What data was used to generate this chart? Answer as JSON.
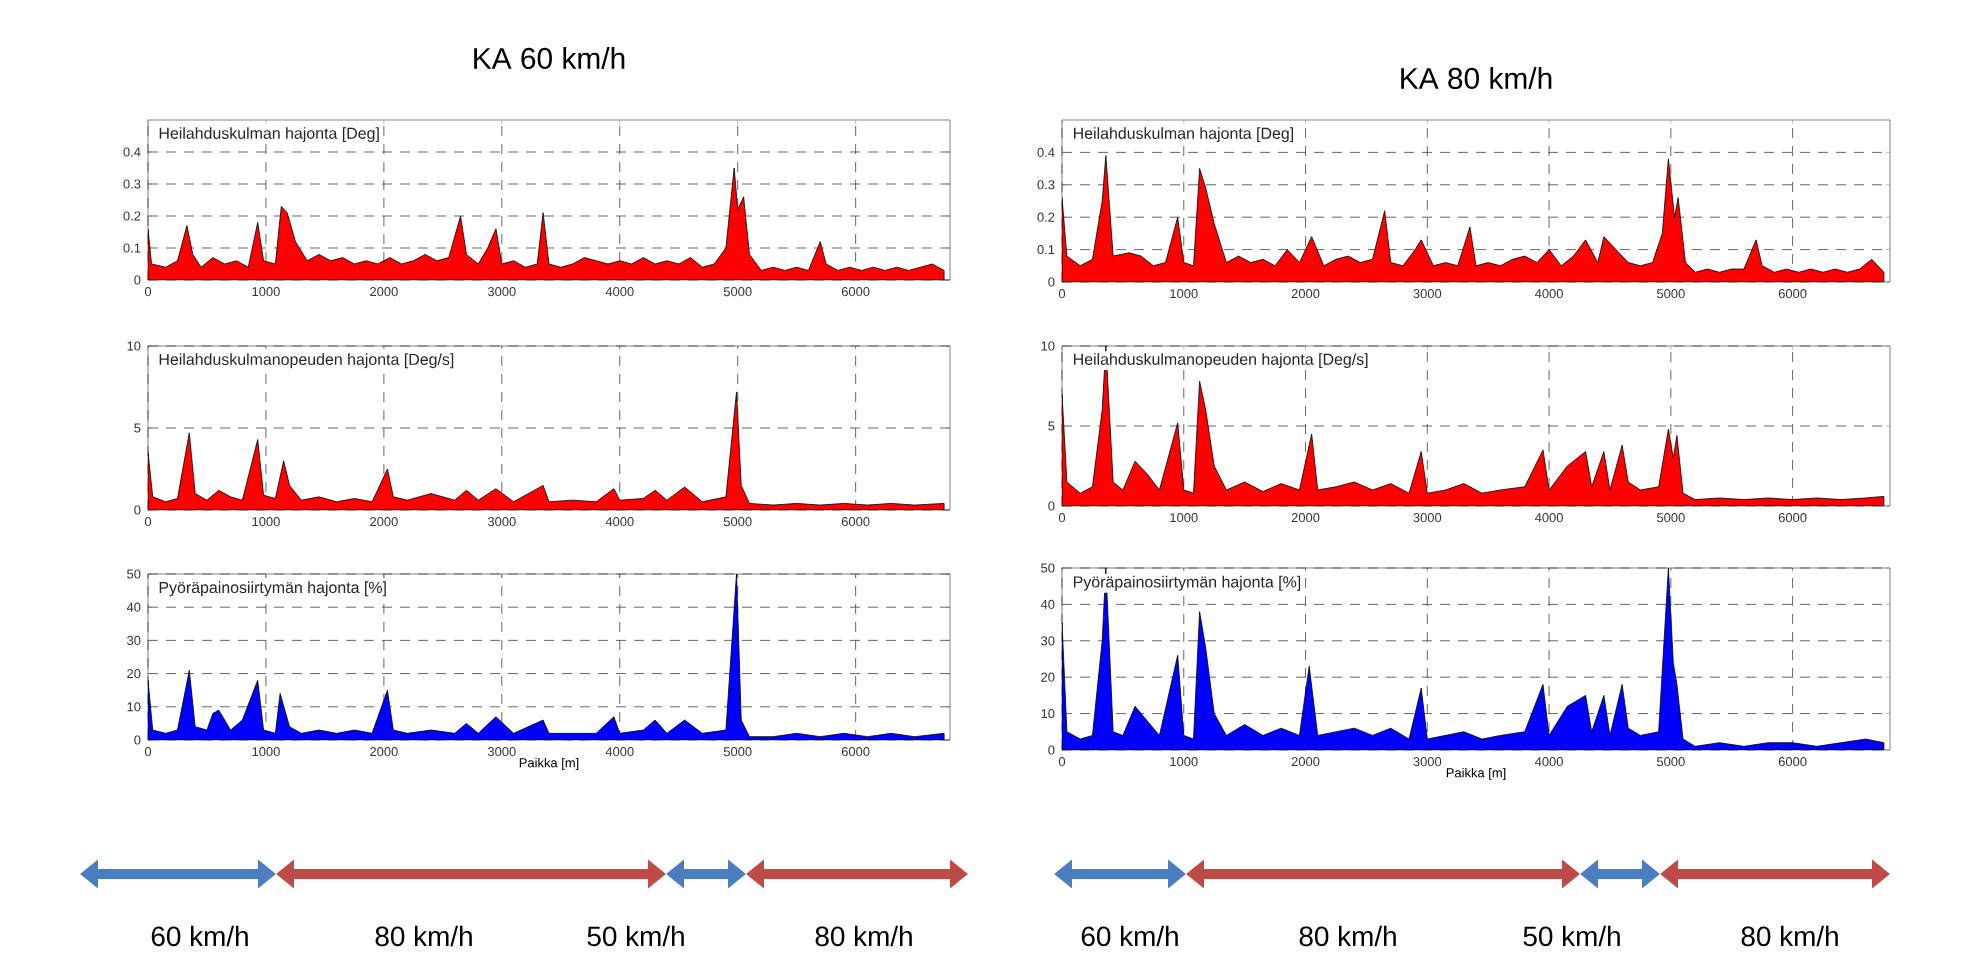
{
  "chart_data": [
    {
      "type": "area",
      "title": "KA 60 km/h",
      "subtitle": "Heilahduskulman hajonta [Deg]",
      "xlim": [
        0,
        6800
      ],
      "xticks": [
        0,
        1000,
        2000,
        3000,
        4000,
        5000,
        6000
      ],
      "ylim": [
        0,
        0.5
      ],
      "yticks": [
        0,
        0.1,
        0.2,
        0.3,
        0.4
      ],
      "grid": true,
      "series": [
        {
          "color": "#ff0000",
          "x": [
            0,
            30,
            150,
            250,
            330,
            380,
            450,
            550,
            650,
            750,
            850,
            930,
            980,
            1080,
            1130,
            1180,
            1250,
            1350,
            1450,
            1550,
            1650,
            1750,
            1850,
            1950,
            2050,
            2150,
            2250,
            2350,
            2450,
            2550,
            2650,
            2700,
            2800,
            2880,
            2950,
            3000,
            3100,
            3200,
            3300,
            3350,
            3400,
            3500,
            3600,
            3700,
            3800,
            3900,
            4000,
            4100,
            4200,
            4300,
            4400,
            4500,
            4600,
            4700,
            4800,
            4900,
            4970,
            5000,
            5050,
            5100,
            5200,
            5300,
            5400,
            5500,
            5600,
            5700,
            5750,
            5850,
            5950,
            6050,
            6150,
            6250,
            6350,
            6450,
            6550,
            6650,
            6750
          ],
          "values": [
            0.16,
            0.05,
            0.04,
            0.06,
            0.17,
            0.08,
            0.04,
            0.07,
            0.05,
            0.06,
            0.04,
            0.18,
            0.06,
            0.05,
            0.23,
            0.21,
            0.12,
            0.06,
            0.08,
            0.06,
            0.07,
            0.05,
            0.06,
            0.05,
            0.07,
            0.05,
            0.06,
            0.08,
            0.06,
            0.07,
            0.2,
            0.08,
            0.05,
            0.1,
            0.16,
            0.05,
            0.06,
            0.04,
            0.05,
            0.21,
            0.05,
            0.04,
            0.05,
            0.07,
            0.06,
            0.05,
            0.06,
            0.05,
            0.07,
            0.05,
            0.06,
            0.05,
            0.07,
            0.04,
            0.05,
            0.1,
            0.35,
            0.22,
            0.26,
            0.08,
            0.03,
            0.04,
            0.03,
            0.04,
            0.03,
            0.12,
            0.05,
            0.03,
            0.04,
            0.03,
            0.04,
            0.03,
            0.04,
            0.03,
            0.04,
            0.05,
            0.03
          ]
        }
      ]
    },
    {
      "type": "area",
      "subtitle": "Heilahduskulmanopeuden hajonta [Deg/s]",
      "xlim": [
        0,
        6800
      ],
      "xticks": [
        0,
        1000,
        2000,
        3000,
        4000,
        5000,
        6000
      ],
      "ylim": [
        0,
        10
      ],
      "yticks": [
        0,
        5,
        10
      ],
      "grid": true,
      "series": [
        {
          "color": "#ff0000",
          "x": [
            0,
            40,
            150,
            250,
            350,
            400,
            500,
            600,
            700,
            800,
            930,
            980,
            1080,
            1150,
            1200,
            1300,
            1450,
            1600,
            1750,
            1900,
            2030,
            2080,
            2200,
            2400,
            2600,
            2700,
            2800,
            2950,
            3100,
            3350,
            3400,
            3600,
            3800,
            3950,
            4000,
            4200,
            4300,
            4400,
            4550,
            4700,
            4900,
            4990,
            5030,
            5100,
            5300,
            5500,
            5700,
            5900,
            6100,
            6300,
            6500,
            6750
          ],
          "values": [
            3.5,
            0.8,
            0.5,
            0.7,
            4.7,
            1.0,
            0.6,
            1.2,
            0.8,
            0.6,
            4.3,
            0.9,
            0.7,
            3.0,
            1.5,
            0.6,
            0.8,
            0.5,
            0.7,
            0.5,
            2.5,
            0.8,
            0.6,
            1.0,
            0.6,
            1.2,
            0.6,
            1.3,
            0.5,
            1.5,
            0.5,
            0.6,
            0.5,
            1.3,
            0.6,
            0.7,
            1.2,
            0.6,
            1.4,
            0.5,
            0.8,
            7.2,
            1.5,
            0.4,
            0.3,
            0.4,
            0.3,
            0.4,
            0.3,
            0.4,
            0.3,
            0.4
          ]
        }
      ]
    },
    {
      "type": "area",
      "subtitle": "Pyöräpainosiirtymän hajonta [%]",
      "xlabel": "Paikka [m]",
      "xlim": [
        0,
        6800
      ],
      "xticks": [
        0,
        1000,
        2000,
        3000,
        4000,
        5000,
        6000
      ],
      "ylim": [
        0,
        50
      ],
      "yticks": [
        0,
        10,
        20,
        30,
        40,
        50
      ],
      "grid": true,
      "series": [
        {
          "color": "#0000ff",
          "x": [
            0,
            40,
            150,
            250,
            350,
            400,
            500,
            550,
            600,
            700,
            800,
            930,
            980,
            1080,
            1120,
            1200,
            1300,
            1450,
            1600,
            1750,
            1900,
            2030,
            2080,
            2200,
            2400,
            2600,
            2700,
            2800,
            2950,
            3100,
            3350,
            3400,
            3600,
            3800,
            3950,
            4000,
            4200,
            4300,
            4400,
            4550,
            4700,
            4900,
            4990,
            5030,
            5100,
            5300,
            5500,
            5700,
            5900,
            6100,
            6300,
            6500,
            6750
          ],
          "values": [
            18,
            3,
            2,
            3,
            21,
            4,
            3,
            8,
            9,
            3,
            6,
            18,
            3,
            2,
            14,
            4,
            2,
            3,
            2,
            3,
            2,
            15,
            3,
            2,
            3,
            2,
            5,
            2,
            7,
            2,
            6,
            2,
            2,
            2,
            7,
            2,
            3,
            6,
            2,
            6,
            2,
            3,
            50,
            6,
            1,
            1,
            2,
            1,
            2,
            1,
            2,
            1,
            2
          ]
        }
      ],
      "annotations": [
        "60 km/h",
        "80 km/h",
        "50 km/h",
        "80 km/h"
      ]
    },
    {
      "type": "area",
      "title": "KA 80 km/h",
      "subtitle": "Heilahduskulman hajonta [Deg]",
      "xlim": [
        0,
        6800
      ],
      "xticks": [
        0,
        1000,
        2000,
        3000,
        4000,
        5000,
        6000
      ],
      "ylim": [
        0,
        0.5
      ],
      "yticks": [
        0,
        0.1,
        0.2,
        0.3,
        0.4
      ],
      "grid": true,
      "series": [
        {
          "color": "#ff0000",
          "x": [
            0,
            40,
            150,
            250,
            330,
            360,
            420,
            550,
            650,
            750,
            850,
            950,
            1000,
            1080,
            1130,
            1180,
            1250,
            1350,
            1450,
            1550,
            1650,
            1750,
            1850,
            1950,
            2050,
            2150,
            2250,
            2350,
            2450,
            2550,
            2650,
            2700,
            2800,
            2900,
            2950,
            3050,
            3150,
            3250,
            3350,
            3400,
            3500,
            3600,
            3700,
            3800,
            3900,
            4000,
            4100,
            4200,
            4300,
            4400,
            4450,
            4550,
            4650,
            4750,
            4850,
            4930,
            4980,
            5030,
            5060,
            5120,
            5200,
            5300,
            5400,
            5500,
            5600,
            5700,
            5750,
            5850,
            5950,
            6050,
            6150,
            6250,
            6350,
            6450,
            6550,
            6650,
            6750
          ],
          "values": [
            0.26,
            0.08,
            0.05,
            0.07,
            0.25,
            0.39,
            0.08,
            0.09,
            0.08,
            0.05,
            0.06,
            0.2,
            0.06,
            0.05,
            0.35,
            0.29,
            0.18,
            0.06,
            0.08,
            0.06,
            0.07,
            0.05,
            0.1,
            0.06,
            0.14,
            0.05,
            0.07,
            0.08,
            0.06,
            0.07,
            0.22,
            0.06,
            0.05,
            0.1,
            0.13,
            0.05,
            0.06,
            0.05,
            0.17,
            0.05,
            0.06,
            0.05,
            0.07,
            0.08,
            0.06,
            0.1,
            0.05,
            0.08,
            0.13,
            0.06,
            0.14,
            0.1,
            0.06,
            0.05,
            0.06,
            0.15,
            0.38,
            0.2,
            0.26,
            0.06,
            0.03,
            0.04,
            0.03,
            0.04,
            0.04,
            0.13,
            0.05,
            0.03,
            0.04,
            0.03,
            0.04,
            0.03,
            0.04,
            0.03,
            0.04,
            0.07,
            0.03
          ]
        }
      ]
    },
    {
      "type": "area",
      "subtitle": "Heilahduskulmanopeuden hajonta [Deg/s]",
      "xlim": [
        0,
        6800
      ],
      "xticks": [
        0,
        1000,
        2000,
        3000,
        4000,
        5000,
        6000
      ],
      "ylim": [
        0,
        10
      ],
      "yticks": [
        0,
        5,
        10
      ],
      "grid": true,
      "series": [
        {
          "color": "#ff0000",
          "x": [
            0,
            40,
            150,
            250,
            330,
            360,
            420,
            500,
            600,
            700,
            800,
            950,
            1000,
            1080,
            1130,
            1180,
            1250,
            1350,
            1500,
            1650,
            1800,
            1950,
            2050,
            2100,
            2250,
            2400,
            2550,
            2700,
            2850,
            2950,
            3000,
            3150,
            3300,
            3450,
            3600,
            3800,
            3950,
            4000,
            4150,
            4300,
            4350,
            4450,
            4500,
            4600,
            4650,
            4750,
            4900,
            4980,
            5020,
            5050,
            5100,
            5200,
            5400,
            5600,
            5800,
            6000,
            6200,
            6400,
            6600,
            6750
          ],
          "values": [
            7,
            1.5,
            0.8,
            1.2,
            6.0,
            10,
            1.5,
            1.0,
            2.8,
            2.0,
            1.0,
            5.2,
            1.0,
            0.8,
            7.8,
            6.0,
            2.5,
            1.0,
            1.5,
            0.9,
            1.4,
            1.0,
            4.5,
            1.0,
            1.2,
            1.5,
            1.0,
            1.4,
            0.8,
            3.4,
            0.8,
            1.0,
            1.4,
            0.8,
            1.0,
            1.2,
            3.5,
            1.0,
            2.5,
            3.4,
            1.2,
            3.4,
            1.0,
            3.8,
            1.5,
            1.0,
            1.2,
            4.8,
            3.0,
            4.4,
            0.8,
            0.4,
            0.5,
            0.4,
            0.5,
            0.4,
            0.5,
            0.4,
            0.5,
            0.6
          ]
        }
      ]
    },
    {
      "type": "area",
      "subtitle": "Pyöräpainosiirtymän hajonta [%]",
      "xlabel": "Paikka [m]",
      "xlim": [
        0,
        6800
      ],
      "xticks": [
        0,
        1000,
        2000,
        3000,
        4000,
        5000,
        6000
      ],
      "ylim": [
        0,
        50
      ],
      "yticks": [
        0,
        10,
        20,
        30,
        40,
        50
      ],
      "grid": true,
      "series": [
        {
          "color": "#0000ff",
          "x": [
            0,
            40,
            150,
            250,
            330,
            360,
            420,
            500,
            600,
            700,
            800,
            950,
            1000,
            1080,
            1130,
            1180,
            1250,
            1350,
            1500,
            1650,
            1800,
            1950,
            2030,
            2100,
            2250,
            2400,
            2550,
            2700,
            2850,
            2950,
            3000,
            3150,
            3300,
            3450,
            3600,
            3800,
            3950,
            4000,
            4150,
            4300,
            4350,
            4450,
            4500,
            4600,
            4650,
            4750,
            4900,
            4980,
            5020,
            5050,
            5100,
            5200,
            5400,
            5600,
            5800,
            6000,
            6200,
            6400,
            6600,
            6750
          ],
          "values": [
            35,
            5,
            3,
            4,
            30,
            50,
            5,
            4,
            12,
            8,
            4,
            26,
            4,
            3,
            38,
            28,
            10,
            4,
            7,
            4,
            6,
            4,
            23,
            4,
            5,
            6,
            4,
            6,
            3,
            17,
            3,
            4,
            5,
            3,
            4,
            5,
            18,
            4,
            12,
            15,
            5,
            15,
            4,
            18,
            6,
            4,
            5,
            50,
            24,
            18,
            3,
            1,
            2,
            1,
            2,
            2,
            1,
            2,
            3,
            2
          ]
        }
      ],
      "annotations": [
        "60 km/h",
        "80 km/h",
        "50 km/h",
        "80 km/h"
      ]
    }
  ]
}
